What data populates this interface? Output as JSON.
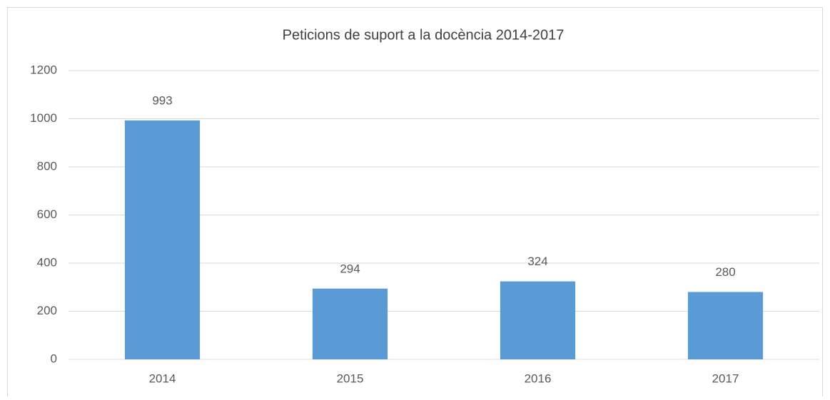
{
  "chart_data": {
    "type": "bar",
    "title": "Peticions de suport a la docència 2014-2017",
    "categories": [
      "2014",
      "2015",
      "2016",
      "2017"
    ],
    "values": [
      993,
      294,
      324,
      280
    ],
    "color": "#5b9bd5",
    "ylim": [
      0,
      1200
    ],
    "yticks": [
      0,
      200,
      400,
      600,
      800,
      1000,
      1200
    ],
    "grid": true
  }
}
